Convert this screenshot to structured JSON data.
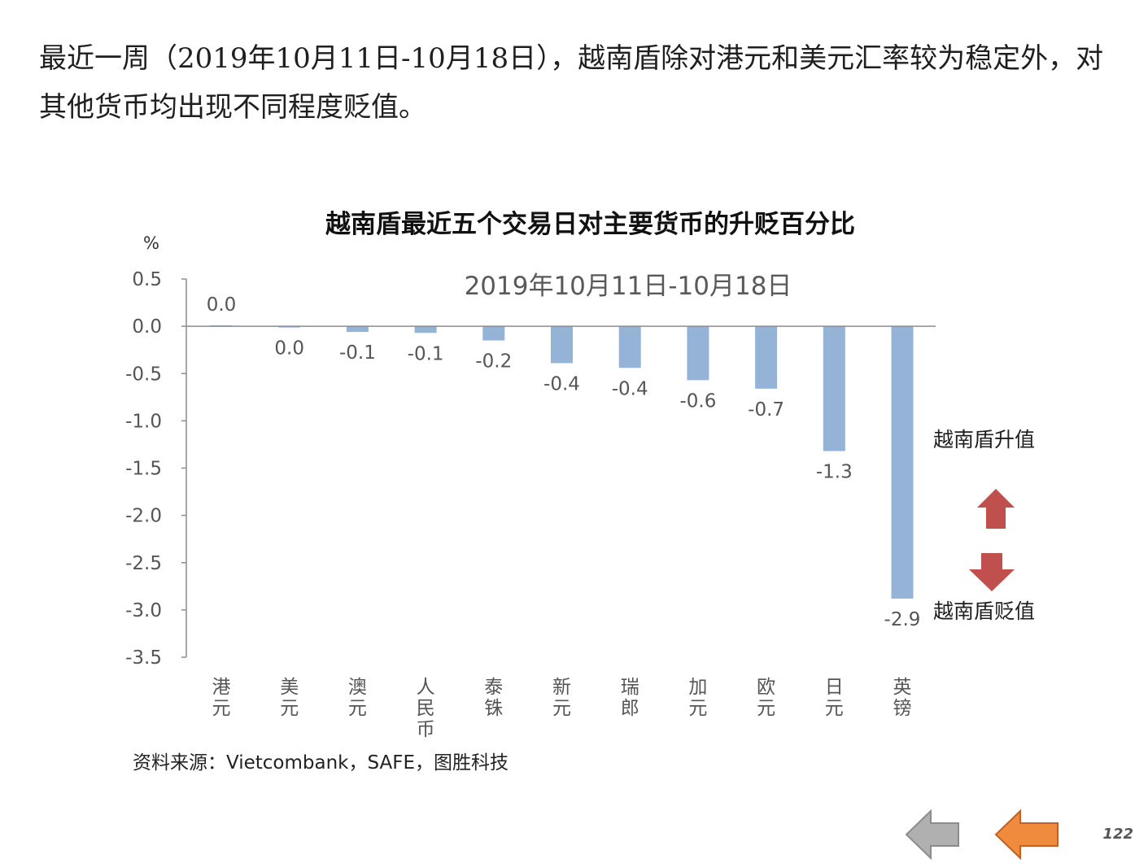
{
  "intro_text": "最近一周（2019年10月11日-10月18日），越南盾除对港元和美元汇率较为稳定外，对其他货币均出现不同程度贬值。",
  "chart_data": {
    "type": "bar",
    "title": "越南盾最近五个交易日对主要货币的升贬百分比",
    "subtitle": "2019年10月11日-10月18日",
    "ylabel": "%",
    "xlabel": "",
    "ylim": [
      -3.5,
      0.5
    ],
    "yticks": [
      0.5,
      0.0,
      -0.5,
      -1.0,
      -1.5,
      -2.0,
      -2.5,
      -3.0,
      -3.5
    ],
    "ytick_labels": [
      "0.5",
      "0.0",
      "-0.5",
      "-1.0",
      "-1.5",
      "-2.0",
      "-2.5",
      "-3.0",
      "-3.5"
    ],
    "categories": [
      "港元",
      "美元",
      "澳元",
      "人民币",
      "泰铢",
      "新元",
      "瑞郎",
      "加元",
      "欧元",
      "日元",
      "英镑"
    ],
    "values": [
      0.01,
      -0.01,
      -0.06,
      -0.07,
      -0.15,
      -0.39,
      -0.44,
      -0.57,
      -0.66,
      -1.32,
      -2.88
    ],
    "data_labels": [
      "0.0",
      "0.0",
      "-0.1",
      "-0.1",
      "-0.2",
      "-0.4",
      "-0.4",
      "-0.6",
      "-0.7",
      "-1.3",
      "-2.9"
    ],
    "bar_color": "#95b3d7",
    "grid": false,
    "legend": {
      "appreciation_label": "越南盾升值",
      "depreciation_label": "越南盾贬值",
      "arrow_color": "#c0504d",
      "position": "right"
    }
  },
  "source_text": "资料来源：Vietcombank，SAFE，图胜科技",
  "page_number": "122",
  "nav": {
    "back_color": "#b0b0b0",
    "prev_color": "#f08a3c"
  }
}
